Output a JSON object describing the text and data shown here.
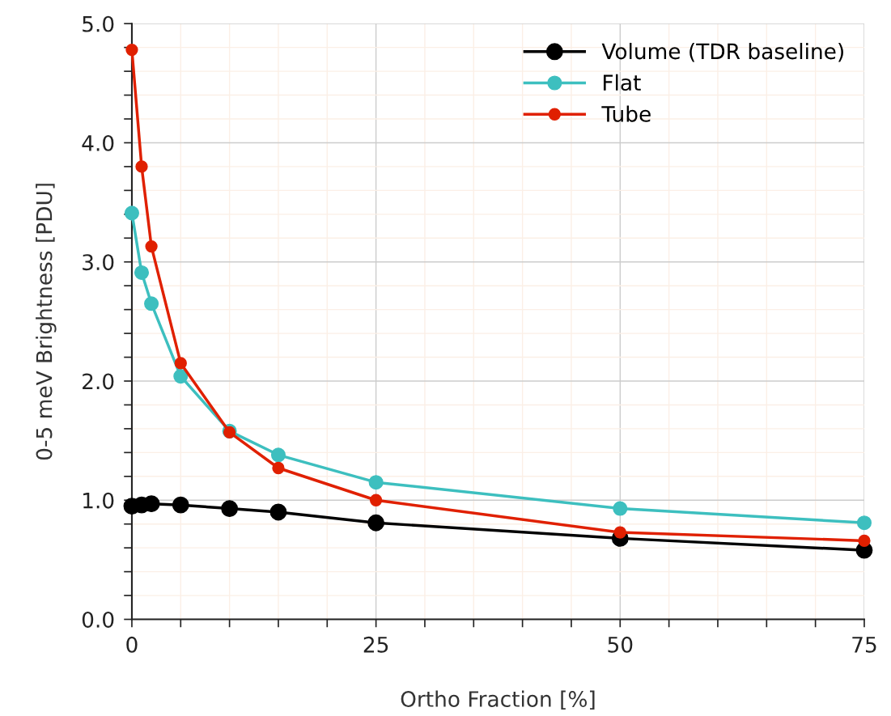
{
  "chart_data": {
    "type": "line",
    "xlabel": "Ortho Fraction [%]",
    "ylabel": "0-5 meV Brightness [PDU]",
    "x": [
      0,
      1,
      2,
      5,
      10,
      15,
      25,
      50,
      75
    ],
    "series": [
      {
        "name": "Volume (TDR baseline)",
        "color": "#000000",
        "values": [
          0.95,
          0.96,
          0.97,
          0.96,
          0.93,
          0.9,
          0.81,
          0.68,
          0.58
        ]
      },
      {
        "name": "Flat",
        "color": "#3dbfbf",
        "values": [
          3.41,
          2.91,
          2.65,
          2.04,
          1.58,
          1.38,
          1.15,
          0.93,
          0.81
        ]
      },
      {
        "name": "Tube",
        "color": "#e02000",
        "values": [
          4.78,
          3.8,
          3.13,
          2.15,
          1.57,
          1.27,
          1.0,
          0.73,
          0.66
        ]
      }
    ],
    "xlim": [
      0,
      75
    ],
    "ylim": [
      0,
      5
    ],
    "xticks": [
      {
        "value": 0,
        "label": "0"
      },
      {
        "value": 5,
        "label": null
      },
      {
        "value": 10,
        "label": null
      },
      {
        "value": 15,
        "label": null
      },
      {
        "value": 20,
        "label": null
      },
      {
        "value": 25,
        "label": "25"
      },
      {
        "value": 30,
        "label": null
      },
      {
        "value": 35,
        "label": null
      },
      {
        "value": 40,
        "label": null
      },
      {
        "value": 45,
        "label": null
      },
      {
        "value": 50,
        "label": "50"
      },
      {
        "value": 55,
        "label": null
      },
      {
        "value": 60,
        "label": null
      },
      {
        "value": 65,
        "label": null
      },
      {
        "value": 70,
        "label": null
      },
      {
        "value": 75,
        "label": "75"
      }
    ],
    "yticks": [
      {
        "value": 0,
        "label": "0.0"
      },
      {
        "value": 0.2,
        "label": null
      },
      {
        "value": 0.4,
        "label": null
      },
      {
        "value": 0.6,
        "label": null
      },
      {
        "value": 0.8,
        "label": null
      },
      {
        "value": 1,
        "label": "1.0"
      },
      {
        "value": 1.2,
        "label": null
      },
      {
        "value": 1.4,
        "label": null
      },
      {
        "value": 1.6,
        "label": null
      },
      {
        "value": 1.8,
        "label": null
      },
      {
        "value": 2,
        "label": "2.0"
      },
      {
        "value": 2.2,
        "label": null
      },
      {
        "value": 2.4,
        "label": null
      },
      {
        "value": 2.6,
        "label": null
      },
      {
        "value": 2.8,
        "label": null
      },
      {
        "value": 3,
        "label": "3.0"
      },
      {
        "value": 3.2,
        "label": null
      },
      {
        "value": 3.4,
        "label": null
      },
      {
        "value": 3.6,
        "label": null
      },
      {
        "value": 3.8,
        "label": null
      },
      {
        "value": 4,
        "label": "4.0"
      },
      {
        "value": 4.2,
        "label": null
      },
      {
        "value": 4.4,
        "label": null
      },
      {
        "value": 4.6,
        "label": null
      },
      {
        "value": 4.8,
        "label": null
      },
      {
        "value": 5,
        "label": "5.0"
      }
    ],
    "grid": true,
    "legend": "top right",
    "marker": "circle",
    "line_style": "solid"
  }
}
